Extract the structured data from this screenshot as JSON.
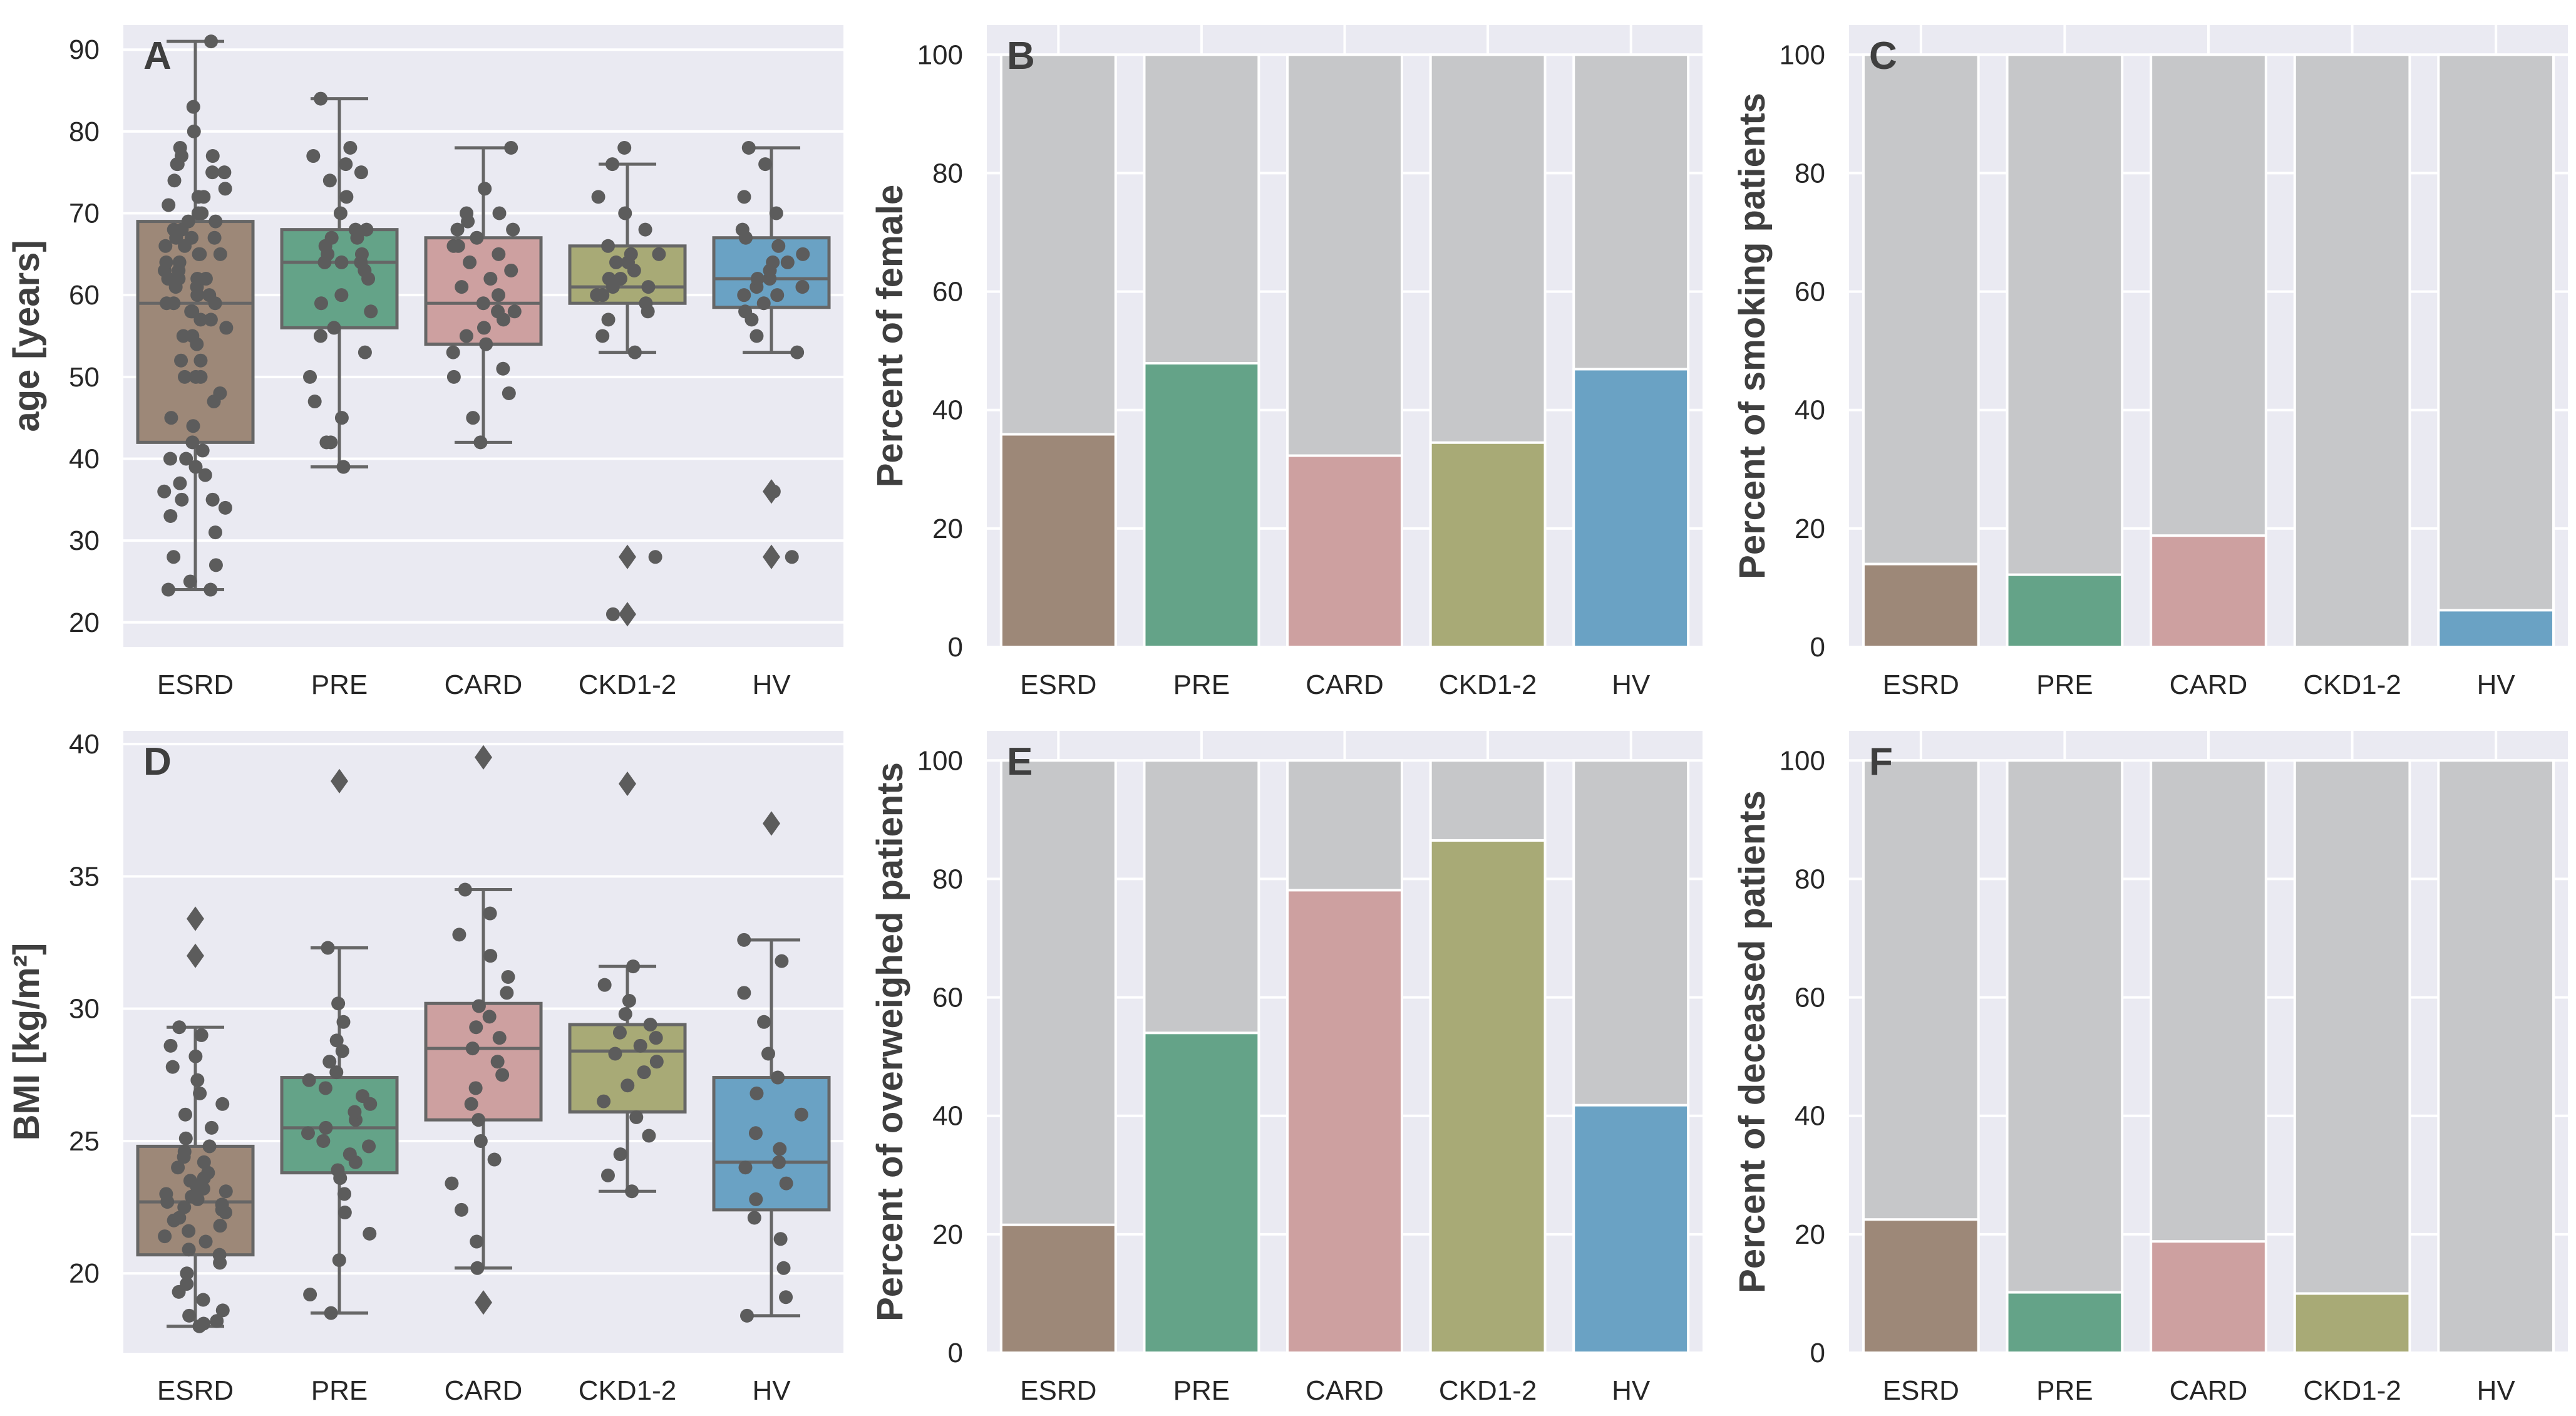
{
  "colors": {
    "ESRD": "#9d8878",
    "PRE": "#64a388",
    "CARD": "#cda0a0",
    "CKD1-2": "#a8aa76",
    "HV": "#6aa2c4",
    "total": "#c6c7c9"
  },
  "chart_data": [
    {
      "id": "A",
      "letter": "A",
      "type": "box",
      "ylabel": "age [years]",
      "categories": [
        "ESRD",
        "PRE",
        "CARD",
        "CKD1-2",
        "HV"
      ],
      "ylim": [
        17,
        93
      ],
      "yticks": [
        20,
        30,
        40,
        50,
        60,
        70,
        80,
        90
      ],
      "boxes": [
        {
          "q1": 42,
          "median": 59,
          "q3": 69,
          "whisker_low": 24,
          "whisker_high": 91,
          "outliers": []
        },
        {
          "q1": 56,
          "median": 64,
          "q3": 68,
          "whisker_low": 39,
          "whisker_high": 84,
          "outliers": []
        },
        {
          "q1": 54,
          "median": 59,
          "q3": 67,
          "whisker_low": 42,
          "whisker_high": 78,
          "outliers": []
        },
        {
          "q1": 59,
          "median": 61,
          "q3": 66,
          "whisker_low": 53,
          "whisker_high": 76,
          "outliers": [
            28,
            21
          ]
        },
        {
          "q1": 58.5,
          "median": 62,
          "q3": 67,
          "whisker_low": 53,
          "whisker_high": 78,
          "outliers": [
            36,
            28
          ]
        }
      ],
      "points": [
        [
          24,
          24,
          25,
          27,
          28,
          31,
          33,
          34,
          35,
          35,
          36,
          37,
          38,
          39,
          40,
          40,
          41,
          42,
          44,
          45,
          47,
          48,
          50,
          50,
          50,
          52,
          52,
          54,
          55,
          55,
          56,
          57,
          57,
          58,
          58,
          59,
          59,
          59,
          60,
          60,
          61,
          61,
          62,
          62,
          62,
          62,
          63,
          63,
          64,
          64,
          65,
          65,
          65,
          66,
          66,
          67,
          67,
          67,
          68,
          68,
          69,
          69,
          70,
          70,
          71,
          72,
          72,
          73,
          74,
          75,
          75,
          76,
          76,
          77,
          77,
          78,
          80,
          83,
          91
        ],
        [
          39,
          42,
          42,
          45,
          47,
          50,
          53,
          55,
          56,
          58,
          59,
          60,
          62,
          63,
          64,
          64,
          64,
          65,
          65,
          66,
          67,
          67,
          68,
          68,
          70,
          72,
          74,
          75,
          76,
          77,
          78,
          84
        ],
        [
          42,
          45,
          48,
          50,
          51,
          53,
          54,
          55,
          56,
          57,
          58,
          58,
          59,
          60,
          61,
          62,
          63,
          64,
          65,
          66,
          66,
          67,
          68,
          68,
          69,
          70,
          70,
          73,
          78
        ],
        [
          21,
          28,
          53,
          55,
          57,
          58,
          59,
          60,
          60,
          61,
          61,
          62,
          62,
          63,
          64,
          64,
          65,
          65,
          66,
          68,
          70,
          72,
          76,
          78
        ],
        [
          28,
          36,
          53,
          55,
          57,
          58,
          59,
          60,
          60,
          61,
          61,
          62,
          62,
          63,
          64,
          64,
          65,
          66,
          67,
          68,
          70,
          72,
          76,
          78
        ]
      ]
    },
    {
      "id": "B",
      "letter": "B",
      "type": "bar",
      "ylabel": "Percent of female",
      "categories": [
        "ESRD",
        "PRE",
        "CARD",
        "CKD1-2",
        "HV"
      ],
      "values": [
        35.9,
        47.9,
        32.3,
        34.5,
        46.9
      ],
      "total": 100,
      "ylim": [
        0,
        105
      ],
      "yticks": [
        0,
        20,
        40,
        60,
        80,
        100
      ]
    },
    {
      "id": "C",
      "letter": "C",
      "type": "bar",
      "ylabel": "Percent of smoking patients",
      "categories": [
        "ESRD",
        "PRE",
        "CARD",
        "CKD1-2",
        "HV"
      ],
      "values": [
        14.0,
        12.2,
        18.8,
        0,
        6.2
      ],
      "total": 100,
      "ylim": [
        0,
        105
      ],
      "yticks": [
        0,
        20,
        40,
        60,
        80,
        100
      ]
    },
    {
      "id": "D",
      "letter": "D",
      "type": "box",
      "ylabel": "BMI [kg/m²]",
      "categories": [
        "ESRD",
        "PRE",
        "CARD",
        "CKD1-2",
        "HV"
      ],
      "ylim": [
        17,
        40.5
      ],
      "yticks": [
        20,
        25,
        30,
        35,
        40
      ],
      "boxes": [
        {
          "q1": 20.7,
          "median": 22.7,
          "q3": 24.8,
          "whisker_low": 18.0,
          "whisker_high": 29.3,
          "outliers": [
            33.4,
            32.0
          ]
        },
        {
          "q1": 23.8,
          "median": 25.5,
          "q3": 27.4,
          "whisker_low": 18.5,
          "whisker_high": 32.3,
          "outliers": [
            38.6
          ]
        },
        {
          "q1": 25.8,
          "median": 28.5,
          "q3": 30.2,
          "whisker_low": 20.2,
          "whisker_high": 34.5,
          "outliers": [
            39.5,
            18.9
          ]
        },
        {
          "q1": 26.1,
          "median": 28.4,
          "q3": 29.4,
          "whisker_low": 23.1,
          "whisker_high": 31.6,
          "outliers": [
            38.5
          ]
        },
        {
          "q1": 22.4,
          "median": 24.2,
          "q3": 27.4,
          "whisker_low": 18.4,
          "whisker_high": 32.6,
          "outliers": [
            37.0
          ]
        }
      ],
      "points": [
        [
          18.0,
          18.1,
          18.2,
          18.4,
          18.6,
          19.0,
          19.3,
          19.6,
          20.0,
          20.4,
          20.7,
          20.9,
          21.2,
          21.4,
          21.6,
          21.8,
          22.0,
          22.1,
          22.3,
          22.4,
          22.5,
          22.6,
          22.7,
          22.8,
          22.9,
          23.0,
          23.1,
          23.2,
          23.3,
          23.5,
          23.6,
          23.8,
          24.0,
          24.2,
          24.4,
          24.6,
          24.8,
          25.1,
          25.5,
          26.0,
          26.4,
          26.8,
          27.3,
          27.8,
          28.2,
          28.6,
          29.0,
          29.3
        ],
        [
          18.5,
          19.2,
          20.5,
          21.5,
          22.3,
          23.0,
          23.6,
          23.9,
          24.2,
          24.5,
          24.8,
          25.0,
          25.3,
          25.5,
          25.8,
          26.1,
          26.4,
          26.7,
          27.0,
          27.3,
          27.6,
          28.0,
          28.4,
          28.8,
          29.5,
          30.2,
          32.3
        ],
        [
          20.2,
          21.2,
          22.4,
          23.4,
          24.3,
          25.0,
          25.8,
          26.4,
          27.0,
          27.5,
          28.0,
          28.5,
          28.9,
          29.3,
          29.7,
          30.1,
          30.6,
          31.2,
          32.0,
          32.8,
          33.6,
          34.5
        ],
        [
          23.1,
          23.7,
          24.5,
          25.2,
          25.9,
          26.5,
          27.1,
          27.6,
          28.0,
          28.3,
          28.6,
          28.9,
          29.1,
          29.4,
          29.8,
          30.3,
          30.9,
          31.6
        ],
        [
          18.4,
          19.1,
          20.2,
          21.3,
          22.1,
          22.8,
          23.4,
          24.0,
          24.2,
          24.7,
          25.3,
          26.0,
          26.8,
          27.4,
          28.3,
          29.5,
          30.6,
          31.8,
          32.6
        ]
      ]
    },
    {
      "id": "E",
      "letter": "E",
      "type": "bar",
      "ylabel": "Percent of overweighed patients",
      "categories": [
        "ESRD",
        "PRE",
        "CARD",
        "CKD1-2",
        "HV"
      ],
      "values": [
        21.6,
        54.0,
        78.1,
        86.5,
        41.8
      ],
      "total": 100,
      "ylim": [
        0,
        105
      ],
      "yticks": [
        0,
        20,
        40,
        60,
        80,
        100
      ]
    },
    {
      "id": "F",
      "letter": "F",
      "type": "bar",
      "ylabel": "Percent of deceased patients",
      "categories": [
        "ESRD",
        "PRE",
        "CARD",
        "CKD1-2",
        "HV"
      ],
      "values": [
        22.5,
        10.2,
        18.8,
        10.0,
        0
      ],
      "total": 100,
      "ylim": [
        0,
        105
      ],
      "yticks": [
        0,
        20,
        40,
        60,
        80,
        100
      ]
    }
  ]
}
